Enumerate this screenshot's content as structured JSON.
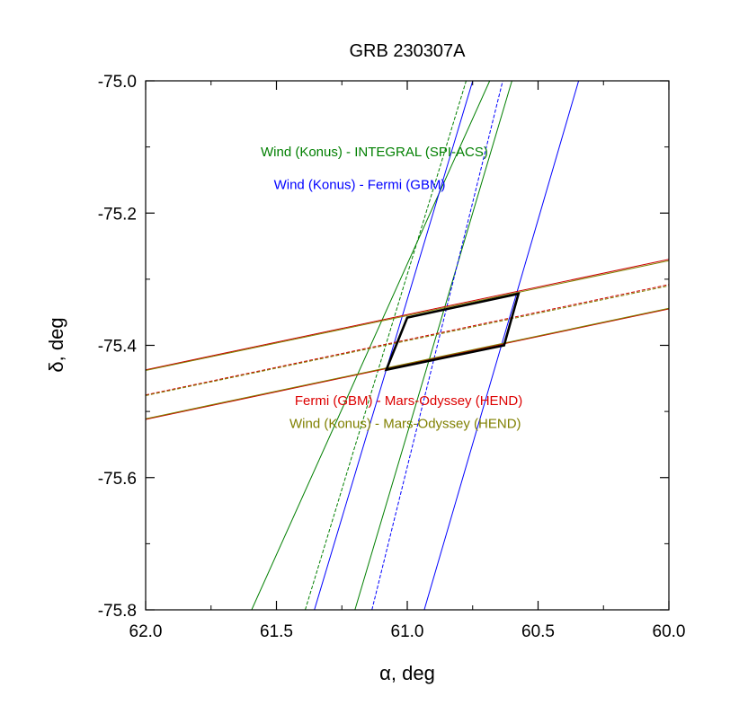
{
  "chart_data": {
    "type": "line",
    "title": "GRB 230307A",
    "xlabel": "α, deg",
    "ylabel": "δ, deg",
    "xlim": [
      62.0,
      60.0
    ],
    "ylim": [
      -75.8,
      -75.0
    ],
    "x_reversed": true,
    "x_ticks": [
      {
        "value": 62.0,
        "label": "62.0"
      },
      {
        "value": 61.5,
        "label": "61.5"
      },
      {
        "value": 61.0,
        "label": "61.0"
      },
      {
        "value": 60.5,
        "label": "60.5"
      },
      {
        "value": 60.0,
        "label": "60.0"
      }
    ],
    "y_ticks": [
      {
        "value": -75.0,
        "label": "-75.0"
      },
      {
        "value": -75.2,
        "label": "-75.2"
      },
      {
        "value": -75.4,
        "label": "-75.4"
      },
      {
        "value": -75.6,
        "label": "-75.6"
      },
      {
        "value": -75.8,
        "label": "-75.8"
      }
    ],
    "grid": false,
    "colors": {
      "konus_integral": "#007f00",
      "konus_fermi": "#0000ff",
      "fermi_mars": "#cc0000",
      "konus_mars": "#808000",
      "box": "#000000"
    },
    "annotations": [
      {
        "text": "Wind (Konus) - INTEGRAL (SPI-ACS)",
        "color": "#007f00",
        "x": 61.56,
        "y": -75.114
      },
      {
        "text": "Wind (Konus) - Fermi (GBM)",
        "color": "#0000ff",
        "x": 61.51,
        "y": -75.164
      },
      {
        "text": "Fermi (GBM) - Mars-Odyssey (HEND)",
        "color": "#dd0000",
        "x": 61.43,
        "y": -75.49
      },
      {
        "text": "Wind (Konus) - Mars-Odyssey (HEND)",
        "color": "#808000",
        "x": 61.45,
        "y": -75.525
      }
    ],
    "series": [
      {
        "key": "ki_outer_left",
        "group": "konus_integral",
        "dash": false,
        "points": [
          [
            61.595,
            -75.8
          ],
          [
            60.685,
            -75.0
          ]
        ]
      },
      {
        "key": "ki_center",
        "group": "konus_integral",
        "dash": true,
        "points": [
          [
            61.39,
            -75.8
          ],
          [
            60.775,
            -75.0
          ]
        ]
      },
      {
        "key": "ki_outer_right",
        "group": "konus_integral",
        "dash": false,
        "points": [
          [
            61.2,
            -75.8
          ],
          [
            60.6,
            -75.0
          ]
        ]
      },
      {
        "key": "kf_outer_left",
        "group": "konus_fermi",
        "dash": false,
        "points": [
          [
            61.355,
            -75.8
          ],
          [
            60.75,
            -75.0
          ]
        ]
      },
      {
        "key": "kf_center",
        "group": "konus_fermi",
        "dash": true,
        "points": [
          [
            61.135,
            -75.8
          ],
          [
            60.635,
            -75.0
          ]
        ]
      },
      {
        "key": "kf_outer_right",
        "group": "konus_fermi",
        "dash": false,
        "points": [
          [
            60.935,
            -75.8
          ],
          [
            60.345,
            -75.0
          ]
        ]
      },
      {
        "key": "fm_upper",
        "group": "fermi_mars",
        "dash": false,
        "points": [
          [
            62.0,
            -75.437
          ],
          [
            60.0,
            -75.27
          ]
        ]
      },
      {
        "key": "fm_center",
        "group": "fermi_mars",
        "dash": true,
        "points": [
          [
            62.0,
            -75.475
          ],
          [
            60.0,
            -75.308
          ]
        ]
      },
      {
        "key": "fm_lower",
        "group": "fermi_mars",
        "dash": false,
        "points": [
          [
            62.0,
            -75.512
          ],
          [
            60.0,
            -75.345
          ]
        ]
      },
      {
        "key": "km_upper",
        "group": "konus_mars",
        "dash": false,
        "points": [
          [
            62.0,
            -75.438
          ],
          [
            60.0,
            -75.272
          ]
        ]
      },
      {
        "key": "km_center",
        "group": "konus_mars",
        "dash": true,
        "points": [
          [
            62.0,
            -75.476
          ],
          [
            60.0,
            -75.31
          ]
        ]
      },
      {
        "key": "km_lower",
        "group": "konus_mars",
        "dash": false,
        "points": [
          [
            62.0,
            -75.511
          ],
          [
            60.0,
            -75.344
          ]
        ]
      },
      {
        "key": "error_box",
        "group": "box",
        "dash": false,
        "closed": true,
        "bold": true,
        "points": [
          [
            61.0,
            -75.358
          ],
          [
            60.575,
            -75.322
          ],
          [
            60.63,
            -75.4
          ],
          [
            61.08,
            -75.437
          ]
        ]
      }
    ]
  }
}
